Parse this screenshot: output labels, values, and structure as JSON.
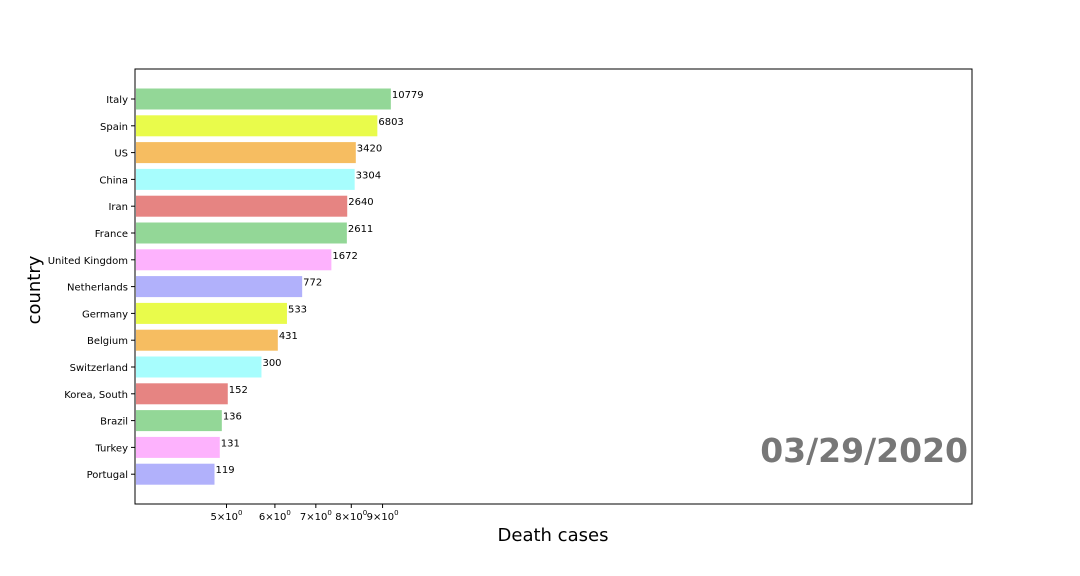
{
  "chart_data": {
    "type": "bar",
    "orientation": "horizontal",
    "xscale": "log",
    "xlabel": "Death cases",
    "ylabel": "country",
    "date_label": "03/29/2020",
    "x_ticks": [
      {
        "base": "5",
        "exp": "0"
      },
      {
        "base": "6",
        "exp": "0"
      },
      {
        "base": "7",
        "exp": "0"
      },
      {
        "base": "8",
        "exp": "0"
      },
      {
        "base": "9",
        "exp": "0"
      }
    ],
    "categories": [
      "Italy",
      "Spain",
      "US",
      "China",
      "Iran",
      "France",
      "United Kingdom",
      "Netherlands",
      "Germany",
      "Belgium",
      "Switzerland",
      "Korea, South",
      "Brazil",
      "Turkey",
      "Portugal"
    ],
    "values": [
      10779,
      6803,
      3420,
      3304,
      2640,
      2611,
      1672,
      772,
      533,
      431,
      300,
      152,
      136,
      131,
      119
    ],
    "colors": [
      "#93d797",
      "#e9fb4b",
      "#f6bd61",
      "#a7fdfd",
      "#e68482",
      "#93d797",
      "#fdb2fd",
      "#b1b1fb",
      "#e9fb4b",
      "#f6bd61",
      "#a7fdfd",
      "#e68482",
      "#93d797",
      "#fdb2fd",
      "#b1b1fb"
    ]
  }
}
